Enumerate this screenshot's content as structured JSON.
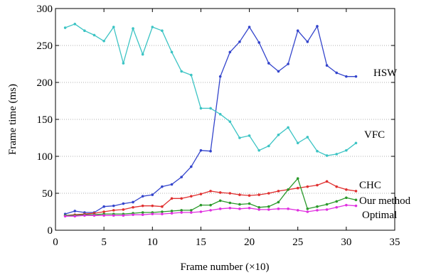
{
  "chart_data": {
    "type": "line",
    "title": "",
    "xlabel": "Frame number (×10)",
    "ylabel": "Frame time (ms)",
    "xlim": [
      0,
      35
    ],
    "ylim": [
      0,
      300
    ],
    "xticks": [
      0,
      5,
      10,
      15,
      20,
      25,
      30,
      35
    ],
    "yticks": [
      0,
      50,
      100,
      150,
      200,
      250,
      300
    ],
    "grid": "horizontal dotted",
    "legend": "inline labels at right end of each series",
    "series": [
      {
        "name": "HSW",
        "color": "#3344cc",
        "x": [
          1,
          2,
          3,
          4,
          5,
          6,
          7,
          8,
          9,
          10,
          11,
          12,
          13,
          14,
          15,
          16,
          17,
          18,
          19,
          20,
          21,
          22,
          23,
          24,
          25,
          26,
          27,
          28,
          29,
          30,
          31
        ],
        "values": [
          22,
          26,
          24,
          24,
          32,
          33,
          36,
          38,
          46,
          48,
          59,
          62,
          72,
          86,
          108,
          107,
          208,
          241,
          255,
          275,
          254,
          226,
          215,
          225,
          270,
          255,
          276,
          223,
          213,
          208,
          208
        ]
      },
      {
        "name": "VFC",
        "color": "#3cc4c4",
        "x": [
          1,
          2,
          3,
          4,
          5,
          6,
          7,
          8,
          9,
          10,
          11,
          12,
          13,
          14,
          15,
          16,
          17,
          18,
          19,
          20,
          21,
          22,
          23,
          24,
          25,
          26,
          27,
          28,
          29,
          30,
          31
        ],
        "values": [
          274,
          279,
          270,
          264,
          256,
          275,
          226,
          273,
          238,
          275,
          270,
          241,
          215,
          210,
          165,
          165,
          157,
          147,
          125,
          128,
          108,
          114,
          129,
          139,
          118,
          126,
          107,
          101,
          103,
          108,
          118
        ]
      },
      {
        "name": "CHC",
        "color": "#e03030",
        "x": [
          1,
          2,
          3,
          4,
          5,
          6,
          7,
          8,
          9,
          10,
          11,
          12,
          13,
          14,
          15,
          16,
          17,
          18,
          19,
          20,
          21,
          22,
          23,
          24,
          25,
          26,
          27,
          28,
          29,
          30,
          31
        ],
        "values": [
          20,
          21,
          22,
          23,
          25,
          27,
          28,
          31,
          33,
          33,
          32,
          43,
          43,
          46,
          49,
          53,
          51,
          50,
          48,
          47,
          48,
          50,
          53,
          55,
          57,
          59,
          61,
          66,
          59,
          55,
          53
        ]
      },
      {
        "name": "Our method",
        "color": "#2a9a2a",
        "x": [
          1,
          2,
          3,
          4,
          5,
          6,
          7,
          8,
          9,
          10,
          11,
          12,
          13,
          14,
          15,
          16,
          17,
          18,
          19,
          20,
          21,
          22,
          23,
          24,
          25,
          26,
          27,
          28,
          29,
          30,
          31
        ],
        "values": [
          20,
          20,
          21,
          21,
          22,
          22,
          22,
          23,
          24,
          24,
          25,
          26,
          27,
          27,
          34,
          34,
          40,
          37,
          35,
          36,
          31,
          32,
          38,
          55,
          70,
          29,
          32,
          35,
          39,
          44,
          41
        ]
      },
      {
        "name": "Optimal",
        "color": "#e030e0",
        "x": [
          1,
          2,
          3,
          4,
          5,
          6,
          7,
          8,
          9,
          10,
          11,
          12,
          13,
          14,
          15,
          16,
          17,
          18,
          19,
          20,
          21,
          22,
          23,
          24,
          25,
          26,
          27,
          28,
          29,
          30,
          31
        ],
        "values": [
          19,
          19,
          20,
          20,
          20,
          20,
          20,
          21,
          21,
          22,
          22,
          23,
          24,
          24,
          25,
          27,
          29,
          30,
          29,
          30,
          28,
          28,
          29,
          29,
          27,
          25,
          27,
          28,
          31,
          34,
          33
        ]
      }
    ]
  }
}
